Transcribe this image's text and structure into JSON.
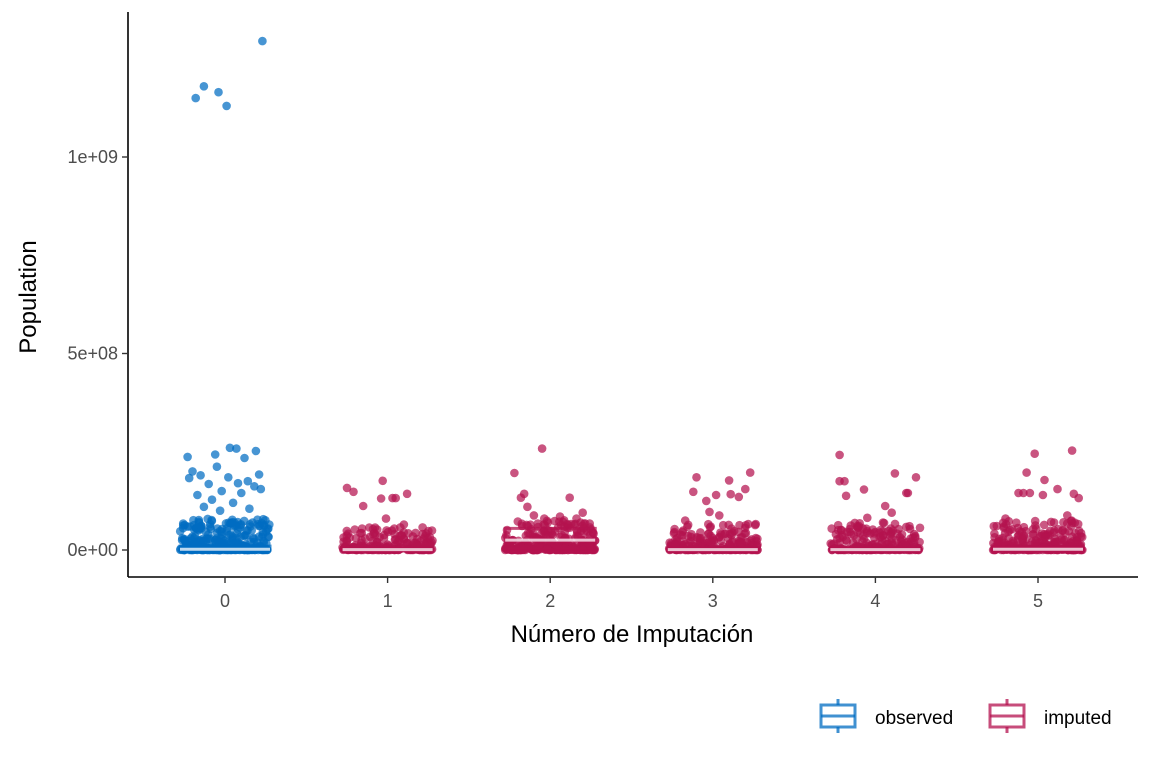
{
  "chart_data": {
    "type": "scatter",
    "title": "",
    "xlabel": "Número de Imputación",
    "ylabel": "Population",
    "categories": [
      "0",
      "1",
      "2",
      "3",
      "4",
      "5"
    ],
    "ylim": [
      -65000000,
      1350000000
    ],
    "yticks": [
      {
        "value": 0,
        "label": "0e+00"
      },
      {
        "value": 500000000,
        "label": "5e+08"
      },
      {
        "value": 1000000000,
        "label": "1e+09"
      }
    ],
    "grid": false,
    "legend_position": "bottom-right",
    "series": [
      {
        "name": "observed",
        "color": "#006CC2",
        "category": "0",
        "box": {
          "q1": 0,
          "median": 2000000,
          "q3": 10000000
        },
        "outliers": [
          {
            "x": -0.18,
            "y": 1150000000
          },
          {
            "x": -0.13,
            "y": 1180000000
          },
          {
            "x": -0.04,
            "y": 1165000000
          },
          {
            "x": 0.01,
            "y": 1130000000
          },
          {
            "x": 0.23,
            "y": 1295000000
          },
          {
            "x": -0.23,
            "y": 237000000
          },
          {
            "x": 0.03,
            "y": 260000000
          },
          {
            "x": 0.07,
            "y": 258000000
          },
          {
            "x": 0.19,
            "y": 252000000
          },
          {
            "x": 0.12,
            "y": 234000000
          },
          {
            "x": -0.06,
            "y": 243000000
          },
          {
            "x": -0.2,
            "y": 200000000
          },
          {
            "x": -0.15,
            "y": 190000000
          },
          {
            "x": 0.21,
            "y": 192000000
          },
          {
            "x": 0.14,
            "y": 175000000
          },
          {
            "x": -0.22,
            "y": 183000000
          },
          {
            "x": -0.1,
            "y": 168000000
          },
          {
            "x": 0.02,
            "y": 185000000
          },
          {
            "x": 0.18,
            "y": 162000000
          },
          {
            "x": -0.05,
            "y": 212000000
          },
          {
            "x": 0.08,
            "y": 170000000
          },
          {
            "x": -0.02,
            "y": 150000000
          },
          {
            "x": -0.17,
            "y": 140000000
          },
          {
            "x": 0.1,
            "y": 145000000
          },
          {
            "x": 0.22,
            "y": 155000000
          },
          {
            "x": -0.08,
            "y": 128000000
          },
          {
            "x": 0.05,
            "y": 120000000
          },
          {
            "x": -0.13,
            "y": 110000000
          },
          {
            "x": 0.15,
            "y": 105000000
          },
          {
            "x": -0.03,
            "y": 100000000
          }
        ],
        "cluster_max": 80000000,
        "cluster_points": 320
      },
      {
        "name": "imputed",
        "color": "#B4124F",
        "category": "1",
        "box": {
          "q1": 0,
          "median": 1000000,
          "q3": 3000000
        },
        "outliers": [
          {
            "x": -0.25,
            "y": 158000000
          },
          {
            "x": -0.21,
            "y": 148000000
          },
          {
            "x": -0.03,
            "y": 176000000
          },
          {
            "x": 0.12,
            "y": 143000000
          },
          {
            "x": 0.03,
            "y": 132000000
          },
          {
            "x": -0.04,
            "y": 131000000
          },
          {
            "x": 0.05,
            "y": 132000000
          },
          {
            "x": -0.15,
            "y": 112000000
          },
          {
            "x": -0.01,
            "y": 80000000
          },
          {
            "x": 0.1,
            "y": 65000000
          }
        ],
        "cluster_max": 60000000,
        "cluster_points": 230
      },
      {
        "name": "imputed",
        "color": "#B4124F",
        "category": "2",
        "box": {
          "q1": 0,
          "median": 25000000,
          "q3": 55000000
        },
        "outliers": [
          {
            "x": -0.05,
            "y": 258000000
          },
          {
            "x": -0.22,
            "y": 196000000
          },
          {
            "x": -0.16,
            "y": 143000000
          },
          {
            "x": -0.18,
            "y": 133000000
          },
          {
            "x": 0.12,
            "y": 133000000
          },
          {
            "x": -0.14,
            "y": 110000000
          },
          {
            "x": 0.2,
            "y": 95000000
          },
          {
            "x": -0.1,
            "y": 88000000
          },
          {
            "x": 0.06,
            "y": 85000000
          }
        ],
        "cluster_max": 80000000,
        "cluster_points": 300
      },
      {
        "name": "imputed",
        "color": "#B4124F",
        "category": "3",
        "box": {
          "q1": 0,
          "median": 1000000,
          "q3": 5000000
        },
        "outliers": [
          {
            "x": -0.1,
            "y": 185000000
          },
          {
            "x": 0.1,
            "y": 177000000
          },
          {
            "x": 0.23,
            "y": 197000000
          },
          {
            "x": -0.12,
            "y": 148000000
          },
          {
            "x": 0.11,
            "y": 142000000
          },
          {
            "x": 0.02,
            "y": 140000000
          },
          {
            "x": 0.16,
            "y": 135000000
          },
          {
            "x": 0.2,
            "y": 155000000
          },
          {
            "x": -0.04,
            "y": 125000000
          },
          {
            "x": -0.02,
            "y": 97000000
          },
          {
            "x": 0.04,
            "y": 88000000
          },
          {
            "x": -0.17,
            "y": 75000000
          }
        ],
        "cluster_max": 70000000,
        "cluster_points": 230
      },
      {
        "name": "imputed",
        "color": "#B4124F",
        "category": "4",
        "box": {
          "q1": 0,
          "median": 1000000,
          "q3": 5000000
        },
        "outliers": [
          {
            "x": -0.22,
            "y": 242000000
          },
          {
            "x": -0.22,
            "y": 175000000
          },
          {
            "x": -0.19,
            "y": 175000000
          },
          {
            "x": 0.12,
            "y": 195000000
          },
          {
            "x": 0.25,
            "y": 185000000
          },
          {
            "x": -0.07,
            "y": 154000000
          },
          {
            "x": 0.19,
            "y": 145000000
          },
          {
            "x": 0.2,
            "y": 145000000
          },
          {
            "x": -0.18,
            "y": 138000000
          },
          {
            "x": 0.06,
            "y": 112000000
          },
          {
            "x": 0.1,
            "y": 95000000
          },
          {
            "x": -0.05,
            "y": 82000000
          }
        ],
        "cluster_max": 70000000,
        "cluster_points": 230
      },
      {
        "name": "imputed",
        "color": "#B4124F",
        "category": "5",
        "box": {
          "q1": 0,
          "median": 2000000,
          "q3": 8000000
        },
        "outliers": [
          {
            "x": -0.02,
            "y": 245000000
          },
          {
            "x": 0.21,
            "y": 253000000
          },
          {
            "x": -0.07,
            "y": 197000000
          },
          {
            "x": -0.12,
            "y": 145000000
          },
          {
            "x": -0.09,
            "y": 145000000
          },
          {
            "x": -0.05,
            "y": 145000000
          },
          {
            "x": 0.04,
            "y": 178000000
          },
          {
            "x": 0.12,
            "y": 155000000
          },
          {
            "x": 0.22,
            "y": 143000000
          },
          {
            "x": 0.25,
            "y": 132000000
          },
          {
            "x": 0.03,
            "y": 140000000
          },
          {
            "x": 0.18,
            "y": 88000000
          },
          {
            "x": -0.2,
            "y": 80000000
          }
        ],
        "cluster_max": 75000000,
        "cluster_points": 260
      }
    ],
    "legend": [
      {
        "label": "observed",
        "color": "#006CC2"
      },
      {
        "label": "imputed",
        "color": "#B4124F"
      }
    ]
  }
}
